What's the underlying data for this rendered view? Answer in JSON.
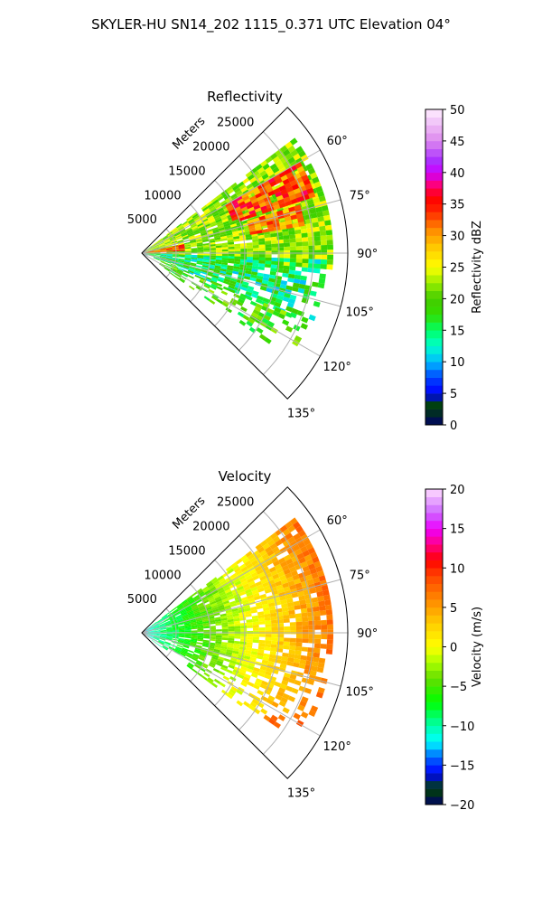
{
  "figure": {
    "title": "SKYLER-HU  SN14_202  1115_0.371 UTC Elevation 04°"
  },
  "chart_data": [
    {
      "type": "heatmap",
      "projection": "polar-sector",
      "title": "Reflectivity",
      "radial_label": "Meters",
      "r_ticks": [
        5000,
        10000,
        15000,
        20000,
        25000
      ],
      "r_tick_labels": [
        "5000",
        "10000",
        "15000",
        "20000",
        "25000"
      ],
      "r_max": 30000,
      "theta_ticks": [
        60,
        75,
        90,
        105,
        120,
        135
      ],
      "theta_tick_labels": [
        "60°",
        "75°",
        "90°",
        "105°",
        "120°",
        "135°"
      ],
      "theta_range": [
        45,
        135
      ],
      "grid": true,
      "colorbar": {
        "label": "Reflectivity dBZ",
        "range": [
          0,
          50
        ],
        "ticks": [
          0,
          5,
          10,
          15,
          20,
          25,
          30,
          35,
          40,
          45,
          50
        ],
        "tick_labels": [
          "0",
          "5",
          "10",
          "15",
          "20",
          "25",
          "30",
          "35",
          "40",
          "45",
          "50"
        ],
        "stops": [
          {
            "v": 0,
            "c": "#000066"
          },
          {
            "v": 3,
            "c": "#004400"
          },
          {
            "v": 5,
            "c": "#0000ff"
          },
          {
            "v": 7.5,
            "c": "#0044ff"
          },
          {
            "v": 10,
            "c": "#00bbff"
          },
          {
            "v": 12.5,
            "c": "#00ffcc"
          },
          {
            "v": 15,
            "c": "#00ff66"
          },
          {
            "v": 17.5,
            "c": "#33dd00"
          },
          {
            "v": 20,
            "c": "#44cc00"
          },
          {
            "v": 22.5,
            "c": "#99ee00"
          },
          {
            "v": 25,
            "c": "#ffff00"
          },
          {
            "v": 28,
            "c": "#ffcc00"
          },
          {
            "v": 31,
            "c": "#ff8800"
          },
          {
            "v": 34,
            "c": "#ff2200"
          },
          {
            "v": 36,
            "c": "#ff0000"
          },
          {
            "v": 38,
            "c": "#ff0077"
          },
          {
            "v": 40,
            "c": "#cc00ff"
          },
          {
            "v": 42,
            "c": "#aa33ff"
          },
          {
            "v": 45,
            "c": "#dd88ee"
          },
          {
            "v": 50,
            "c": "#ffeeff"
          }
        ]
      },
      "field": {
        "regions": [
          {
            "r": [
              0,
              27500
            ],
            "az": [
              53,
              95
            ],
            "v": 22,
            "spread": 4
          },
          {
            "r": [
              14000,
              26000
            ],
            "az": [
              60,
              72
            ],
            "v": 33,
            "spread": 5
          },
          {
            "r": [
              16000,
              24000
            ],
            "az": [
              73,
              80
            ],
            "v": 31,
            "spread": 4
          },
          {
            "r": [
              0,
              6000
            ],
            "az": [
              78,
              86
            ],
            "v": 33,
            "spread": 4
          },
          {
            "r": [
              0,
              27000
            ],
            "az": [
              92,
              112
            ],
            "v": 15,
            "spread": 5
          },
          {
            "r": [
              3000,
              26000
            ],
            "az": [
              112,
              125
            ],
            "v": 19,
            "spread": 4
          }
        ]
      }
    },
    {
      "type": "heatmap",
      "projection": "polar-sector",
      "title": "Velocity",
      "radial_label": "Meters",
      "r_ticks": [
        5000,
        10000,
        15000,
        20000,
        25000
      ],
      "r_tick_labels": [
        "5000",
        "10000",
        "15000",
        "20000",
        "25000"
      ],
      "r_max": 30000,
      "theta_ticks": [
        60,
        75,
        90,
        105,
        120,
        135
      ],
      "theta_tick_labels": [
        "60°",
        "75°",
        "90°",
        "105°",
        "120°",
        "135°"
      ],
      "theta_range": [
        45,
        135
      ],
      "grid": true,
      "colorbar": {
        "label": "Velocity (m/s)",
        "range": [
          -20,
          20
        ],
        "ticks": [
          -20,
          -15,
          -10,
          -5,
          0,
          5,
          10,
          15,
          20
        ],
        "tick_labels": [
          "−20",
          "−15",
          "−10",
          "−5",
          "0",
          "5",
          "10",
          "15",
          "20"
        ],
        "stops": [
          {
            "v": -20,
            "c": "#000066"
          },
          {
            "v": -18,
            "c": "#004400"
          },
          {
            "v": -16,
            "c": "#0000ff"
          },
          {
            "v": -14,
            "c": "#0066ff"
          },
          {
            "v": -12,
            "c": "#00ffff"
          },
          {
            "v": -10,
            "c": "#00ffaa"
          },
          {
            "v": -7,
            "c": "#00ff00"
          },
          {
            "v": -4,
            "c": "#66dd00"
          },
          {
            "v": -2,
            "c": "#aaff00"
          },
          {
            "v": 0,
            "c": "#ffff00"
          },
          {
            "v": 3,
            "c": "#ffcc00"
          },
          {
            "v": 6,
            "c": "#ff8800"
          },
          {
            "v": 9,
            "c": "#ff4400"
          },
          {
            "v": 11,
            "c": "#ff0000"
          },
          {
            "v": 13,
            "c": "#ff0088"
          },
          {
            "v": 15,
            "c": "#ee00ff"
          },
          {
            "v": 17,
            "c": "#cc66ff"
          },
          {
            "v": 20,
            "c": "#ffddff"
          }
        ]
      },
      "field": {
        "gradient": {
          "r0": 0,
          "r1": 27500,
          "v0": -12,
          "v1": 7,
          "spread": 1.5
        },
        "regions": [
          {
            "r": [
              0,
              27500
            ],
            "az": [
              53,
              126
            ],
            "mode": "gradient"
          }
        ]
      }
    }
  ]
}
